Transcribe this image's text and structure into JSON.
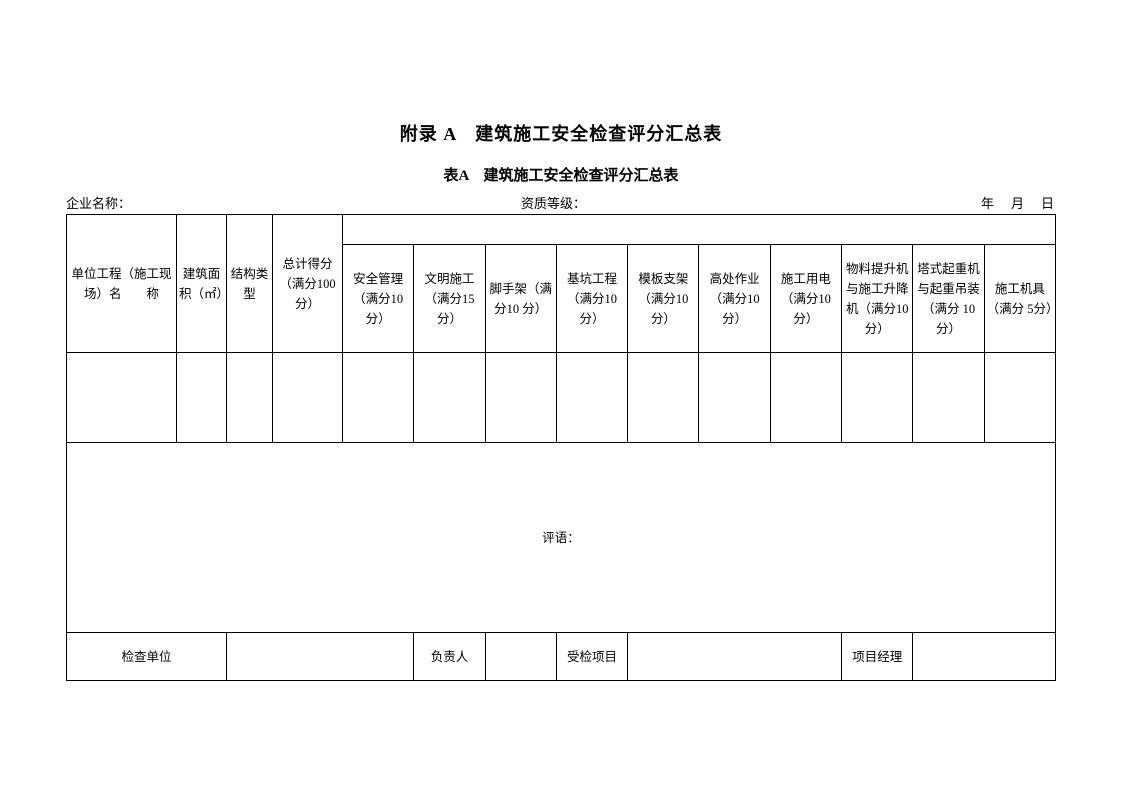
{
  "titles": {
    "main": "附录 A　建筑施工安全检查评分汇总表",
    "sub": "表A　建筑施工安全检查评分汇总表"
  },
  "info": {
    "company_label": "企业名称：",
    "qual_label": "资质等级：",
    "date_label": "年　月　日"
  },
  "headers": {
    "col1": "单位工程（施工现场）名　　称",
    "col2": "建筑面积（㎡）",
    "col3": "结构类型",
    "col4": "总计得分（满分100 分）",
    "sub1": "安全管理（满分10 分）",
    "sub2": "文明施工（满分15 分）",
    "sub3": "脚手架（满分10 分）",
    "sub4": "基坑工程（满分10 分）",
    "sub5": "模板支架（满分10 分）",
    "sub6": "高处作业（满分10 分）",
    "sub7": "施工用电（满分10 分）",
    "sub8": "物料提升机与施工升降机（满分10 分）",
    "sub9": "塔式起重机与起重吊装（满分 10 分）",
    "sub10": "施工机具（满分 5分）"
  },
  "comment_label": "评语：",
  "footer": {
    "inspect_unit": "检查单位",
    "responsible": "负责人",
    "inspected_project": "受检项目",
    "project_manager": "项目经理"
  },
  "colors": {
    "border": "#000000",
    "text": "#000000",
    "background": "#ffffff"
  },
  "font": {
    "title_size": 18,
    "sub_title_size": 15,
    "body_size": 12.5
  }
}
